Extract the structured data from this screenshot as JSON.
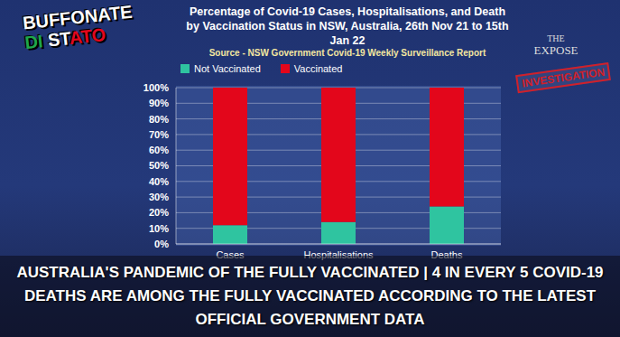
{
  "chart_data": {
    "type": "bar",
    "title": "Percentage of Covid-19 Cases, Hospitalisations, and Death by Vaccination Status in NSW, Australia, 26th Nov 21 to 15th Jan 22",
    "subtitle": "Source - NSW Government Covid-19 Weekly Surveillance Report",
    "categories": [
      "Cases",
      "Hospitalisations",
      "Deaths"
    ],
    "series": [
      {
        "name": "Not Vaccinated",
        "color": "#2fc4a0",
        "values": [
          12,
          14,
          24
        ]
      },
      {
        "name": "Vaccinated",
        "color": "#e3061b",
        "values": [
          88,
          86,
          76
        ]
      }
    ],
    "stacked": true,
    "legend": "top",
    "grid": true,
    "ylim": [
      0,
      100
    ],
    "yticks": [
      {
        "value": 0,
        "label": "0%"
      },
      {
        "value": 10,
        "label": "10%"
      },
      {
        "value": 20,
        "label": "20%"
      },
      {
        "value": 30,
        "label": "30%"
      },
      {
        "value": 40,
        "label": "40%"
      },
      {
        "value": 50,
        "label": "50%"
      },
      {
        "value": 60,
        "label": "60%"
      },
      {
        "value": 70,
        "label": "70%"
      },
      {
        "value": 80,
        "label": "80%"
      },
      {
        "value": 90,
        "label": "90%"
      },
      {
        "value": 100,
        "label": "100%"
      }
    ],
    "annotations": [
      "BUFFONATE",
      "DI STATO",
      "THE",
      "EXPOSE",
      "INVESTIGATION",
      "AUSTRALIA'S PANDEMIC OF THE FULLY VACCINATED | 4 IN EVERY 5 COVID-19 DEATHS ARE AMONG THE FULLY VACCINATED ACCORDING TO THE LATEST OFFICIAL GOVERNMENT DATA"
    ]
  }
}
